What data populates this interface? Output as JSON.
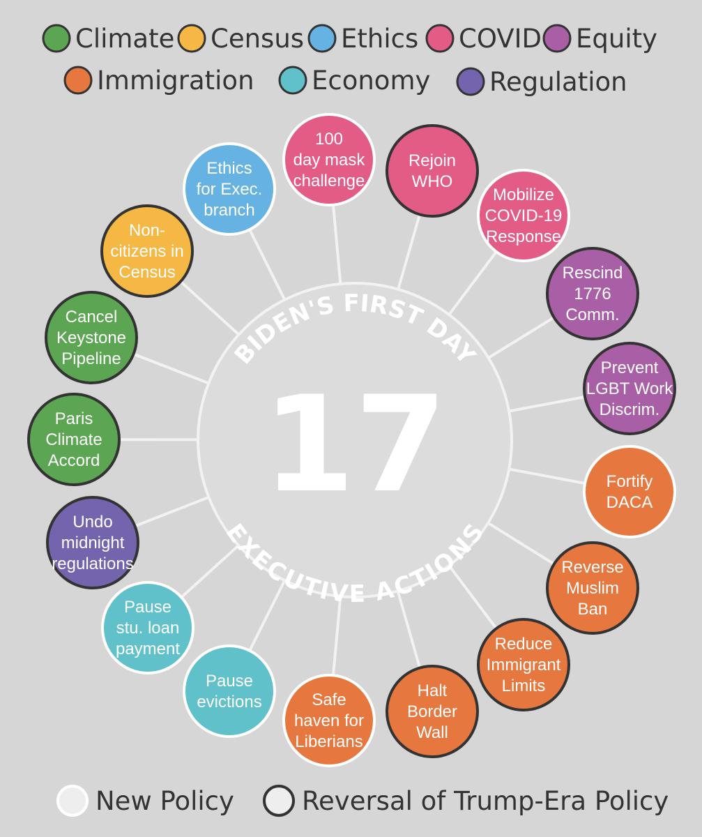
{
  "colors": {
    "Climate": "#5ca553",
    "Census": "#f5b844",
    "Ethics": "#66b2e2",
    "COVID": "#e35c85",
    "Equity": "#a85fa6",
    "Immigration": "#e6773f",
    "Economy": "#60c1ca",
    "Regulation": "#7464ae",
    "background": "#d6d6d6",
    "line": "#f2f2f2",
    "hub": "#dcdcdc",
    "outline_new": "#ffffff",
    "outline_reversal": "#333333"
  },
  "legend": {
    "categories": [
      "Climate",
      "Census",
      "Ethics",
      "COVID",
      "Equity",
      "Immigration",
      "Economy",
      "Regulation"
    ],
    "policy_types": [
      {
        "id": "new",
        "label": "New Policy"
      },
      {
        "id": "reversal",
        "label": "Reversal of Trump-Era Policy"
      }
    ]
  },
  "hub": {
    "title_top": "BIDEN'S FIRST DAY",
    "number": "17",
    "title_bottom": "EXECUTIVE ACTIONS"
  },
  "actions": [
    {
      "id": "mask",
      "lines": [
        "100",
        "day mask",
        "challenge"
      ],
      "category": "COVID",
      "type": "new"
    },
    {
      "id": "who",
      "lines": [
        "Rejoin",
        "WHO"
      ],
      "category": "COVID",
      "type": "reversal"
    },
    {
      "id": "covid-response",
      "lines": [
        "Mobilize",
        "COVID-19",
        "Response"
      ],
      "category": "COVID",
      "type": "new"
    },
    {
      "id": "1776",
      "lines": [
        "Rescind",
        "1776",
        "Comm."
      ],
      "category": "Equity",
      "type": "reversal"
    },
    {
      "id": "lgbt",
      "lines": [
        "Prevent",
        "LGBT Work",
        "Discrim."
      ],
      "category": "Equity",
      "type": "reversal"
    },
    {
      "id": "daca",
      "lines": [
        "Fortify",
        "DACA"
      ],
      "category": "Immigration",
      "type": "new"
    },
    {
      "id": "muslim-ban",
      "lines": [
        "Reverse",
        "Muslim",
        "Ban"
      ],
      "category": "Immigration",
      "type": "reversal"
    },
    {
      "id": "immigrant-limits",
      "lines": [
        "Reduce",
        "Immigrant",
        "Limits"
      ],
      "category": "Immigration",
      "type": "reversal"
    },
    {
      "id": "border-wall",
      "lines": [
        "Halt",
        "Border",
        "Wall"
      ],
      "category": "Immigration",
      "type": "reversal"
    },
    {
      "id": "liberians",
      "lines": [
        "Safe",
        "haven for",
        "Liberians"
      ],
      "category": "Immigration",
      "type": "new"
    },
    {
      "id": "evictions",
      "lines": [
        "Pause",
        "evictions"
      ],
      "category": "Economy",
      "type": "new"
    },
    {
      "id": "student-loans",
      "lines": [
        "Pause",
        "stu. loan",
        "payment"
      ],
      "category": "Economy",
      "type": "new"
    },
    {
      "id": "midnight-regs",
      "lines": [
        "Undo",
        "midnight",
        "regulations"
      ],
      "category": "Regulation",
      "type": "reversal"
    },
    {
      "id": "paris",
      "lines": [
        "Paris",
        "Climate",
        "Accord"
      ],
      "category": "Climate",
      "type": "reversal"
    },
    {
      "id": "keystone",
      "lines": [
        "Cancel",
        "Keystone",
        "Pipeline"
      ],
      "category": "Climate",
      "type": "reversal"
    },
    {
      "id": "census",
      "lines": [
        "Non-",
        "citizens in",
        "Census"
      ],
      "category": "Census",
      "type": "reversal"
    },
    {
      "id": "ethics",
      "lines": [
        "Ethics",
        "for Exec.",
        "branch"
      ],
      "category": "Ethics",
      "type": "new"
    }
  ]
}
